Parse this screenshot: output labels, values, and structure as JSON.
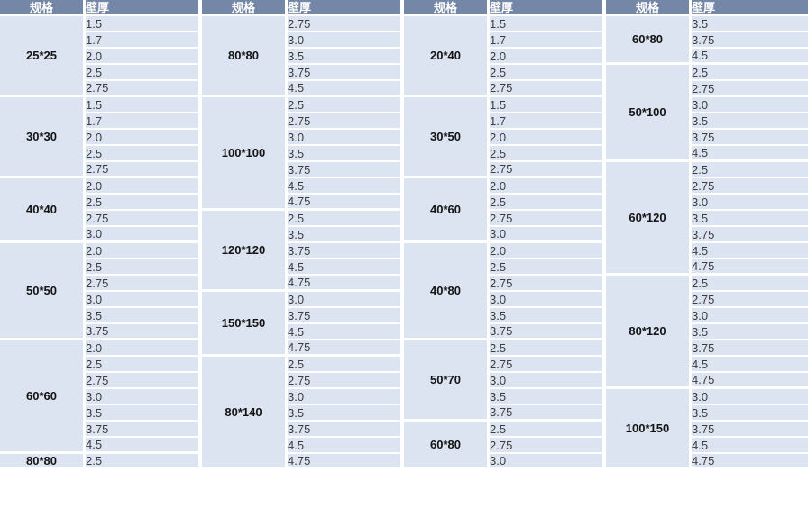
{
  "table": {
    "headers": {
      "spec": "规格",
      "thickness": "壁厚"
    },
    "colors": {
      "header_bg": "#7587a6",
      "header_text": "#ffffff",
      "cell_bg": "#dce3f1",
      "grid": "#ffffff",
      "value_text": "#3c3c3c",
      "spec_text": "#141414"
    },
    "groups": [
      {
        "sections": [
          {
            "spec": "25*25",
            "values": [
              "1.5",
              "1.7",
              "2.0",
              "2.5",
              "2.75"
            ]
          },
          {
            "spec": "30*30",
            "values": [
              "1.5",
              "1.7",
              "2.0",
              "2.5",
              "2.75"
            ]
          },
          {
            "spec": "40*40",
            "values": [
              "2.0",
              "2.5",
              "2.75",
              "3.0"
            ]
          },
          {
            "spec": "50*50",
            "values": [
              "2.0",
              "2.5",
              "2.75",
              "3.0",
              "3.5",
              "3.75"
            ]
          },
          {
            "spec": "60*60",
            "values": [
              "2.0",
              "2.5",
              "2.75",
              "3.0",
              "3.5",
              "3.75",
              "4.5"
            ]
          },
          {
            "spec": "80*80",
            "values": [
              "2.5"
            ]
          }
        ]
      },
      {
        "sections": [
          {
            "spec": "80*80",
            "values": [
              "2.75",
              "3.0",
              "3.5",
              "3.75",
              "4.5"
            ]
          },
          {
            "spec": "100*100",
            "values": [
              "2.5",
              "2.75",
              "3.0",
              "3.5",
              "3.75",
              "4.5",
              "4.75"
            ]
          },
          {
            "spec": "120*120",
            "values": [
              "2.5",
              "3.5",
              "3.75",
              "4.5",
              "4.75"
            ]
          },
          {
            "spec": "150*150",
            "values": [
              "3.0",
              "3.75",
              "4.5",
              "4.75"
            ]
          },
          {
            "spec": "80*140",
            "values": [
              "2.5",
              "2.75",
              "3.0",
              "3.5",
              "3.75",
              "4.5",
              "4.75"
            ]
          }
        ]
      },
      {
        "sections": [
          {
            "spec": "20*40",
            "values": [
              "1.5",
              "1.7",
              "2.0",
              "2.5",
              "2.75"
            ]
          },
          {
            "spec": "30*50",
            "values": [
              "1.5",
              "1.7",
              "2.0",
              "2.5",
              "2.75"
            ]
          },
          {
            "spec": "40*60",
            "values": [
              "2.0",
              "2.5",
              "2.75",
              "3.0"
            ]
          },
          {
            "spec": "40*80",
            "values": [
              "2.0",
              "2.5",
              "2.75",
              "3.0",
              "3.5",
              "3.75"
            ]
          },
          {
            "spec": "50*70",
            "values": [
              "2.5",
              "2.75",
              "3.0",
              "3.5",
              "3.75"
            ]
          },
          {
            "spec": "60*80",
            "values": [
              "2.5",
              "2.75",
              "3.0"
            ]
          }
        ]
      },
      {
        "sections": [
          {
            "spec": "60*80",
            "values": [
              "3.5",
              "3.75",
              "4.5"
            ]
          },
          {
            "spec": "50*100",
            "values": [
              "2.5",
              "2.75",
              "3.0",
              "3.5",
              "3.75",
              "4.5"
            ]
          },
          {
            "spec": "60*120",
            "values": [
              "2.5",
              "2.75",
              "3.0",
              "3.5",
              "3.75",
              "4.5",
              "4.75"
            ]
          },
          {
            "spec": "80*120",
            "values": [
              "2.5",
              "2.75",
              "3.0",
              "3.5",
              "3.75",
              "4.5",
              "4.75"
            ]
          },
          {
            "spec": "100*150",
            "values": [
              "3.0",
              "3.5",
              "3.75",
              "4.5",
              "4.75"
            ]
          }
        ]
      }
    ]
  }
}
